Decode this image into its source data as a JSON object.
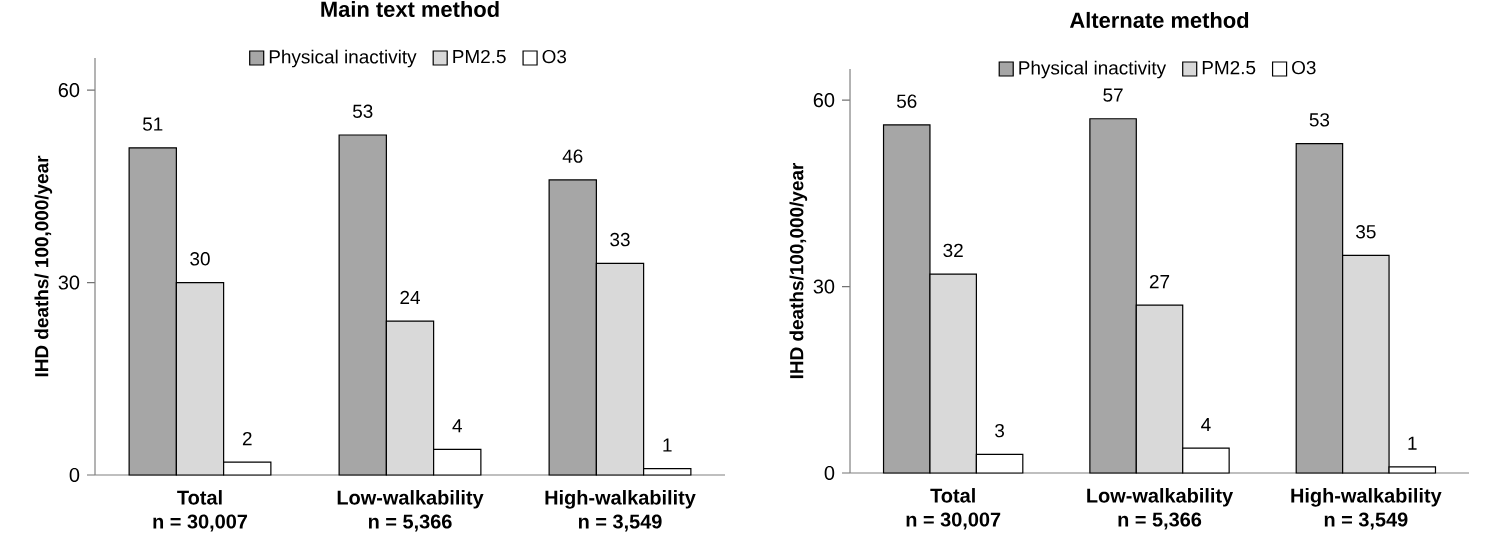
{
  "chart_data": [
    {
      "type": "bar",
      "title": "Main text method",
      "ylabel": "IHD deaths/ 100,000/year",
      "categories": [
        "Total\nn = 30,007",
        "Low-walkability\nn = 5,366",
        "High-walkability\nn = 3,549"
      ],
      "series": [
        {
          "name": "Physical inactivity",
          "color": "#a6a6a6",
          "values": [
            51,
            53,
            46
          ]
        },
        {
          "name": "PM2.5",
          "color": "#d9d9d9",
          "values": [
            30,
            24,
            33
          ]
        },
        {
          "name": "O3",
          "color": "#ffffff",
          "values": [
            2,
            4,
            1
          ]
        }
      ],
      "ylim": [
        0,
        65
      ],
      "yticks": [
        0,
        30,
        60
      ],
      "data_labels": true,
      "legend": "top"
    },
    {
      "type": "bar",
      "title": "Alternate method",
      "ylabel": "IHD deaths/100,000/year",
      "categories": [
        "Total\nn = 30,007",
        "Low-walkability\nn = 5,366",
        "High-walkability\nn = 3,549"
      ],
      "series": [
        {
          "name": "Physical inactivity",
          "color": "#a6a6a6",
          "values": [
            56,
            57,
            53
          ]
        },
        {
          "name": "PM2.5",
          "color": "#d9d9d9",
          "values": [
            32,
            27,
            35
          ]
        },
        {
          "name": "O3",
          "color": "#ffffff",
          "values": [
            3,
            4,
            1
          ]
        }
      ],
      "ylim": [
        0,
        65
      ],
      "yticks": [
        0,
        30,
        60
      ],
      "data_labels": true,
      "legend": "top"
    }
  ]
}
